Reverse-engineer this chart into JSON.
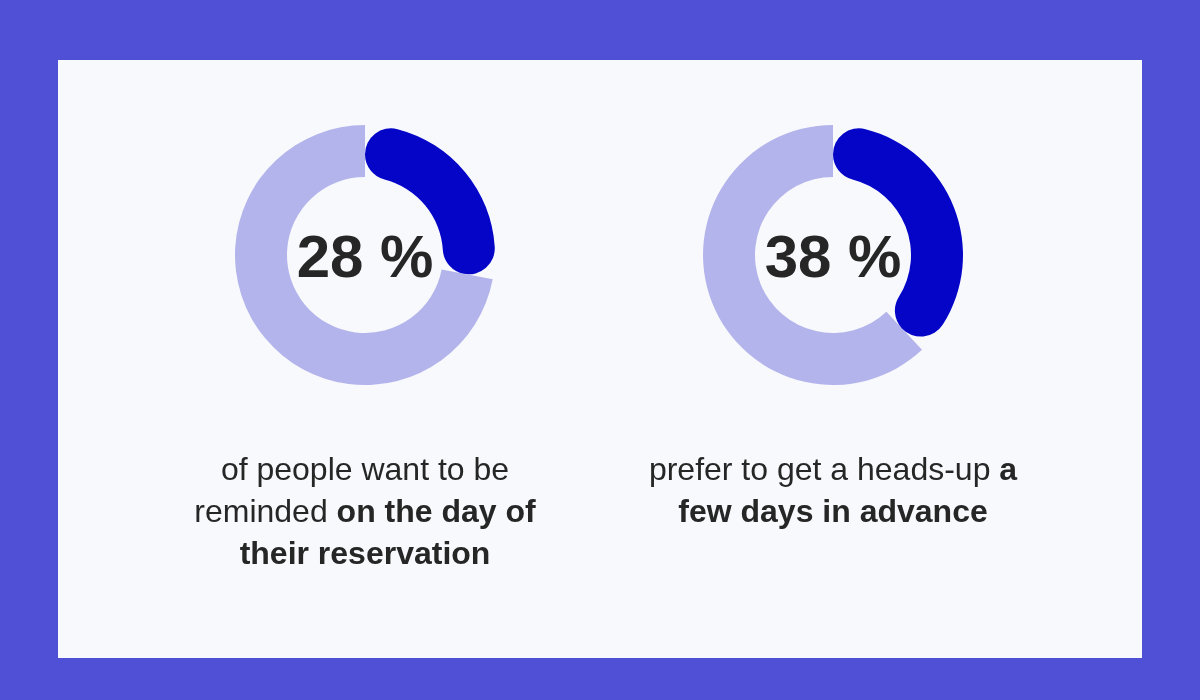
{
  "chart_data": [
    {
      "type": "donut",
      "categories": [
        null,
        null
      ],
      "values": [
        28,
        72
      ],
      "colors": [
        "#0505c8",
        "#b4b4ec"
      ],
      "title": "28 %",
      "annotations": [
        "of people want to be reminded",
        "on the day of their reservation"
      ]
    },
    {
      "type": "donut",
      "categories": [
        null,
        null
      ],
      "values": [
        38,
        62
      ],
      "colors": [
        "#0505c8",
        "#b4b4ec"
      ],
      "title": "38 %",
      "annotations": [
        "prefer to get a heads-up",
        "a few days in advance"
      ]
    }
  ]
}
